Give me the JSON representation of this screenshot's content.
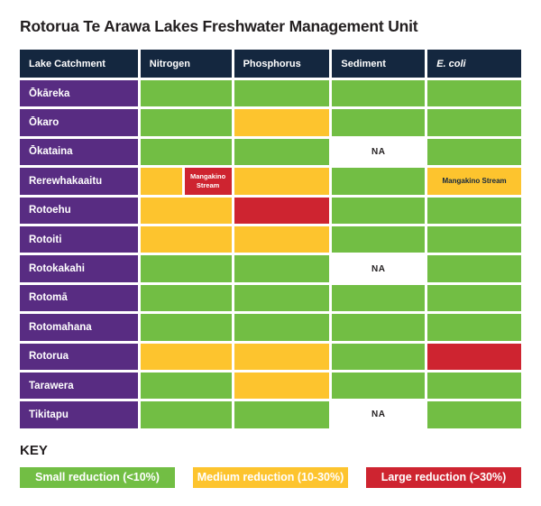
{
  "colors": {
    "green": "#72be44",
    "yellow": "#fdc42e",
    "red": "#ce2430",
    "purple": "#582c82",
    "navy": "#14273f",
    "na": "#ffffff",
    "text_dark": "#231f20"
  },
  "key_heading": "KEY",
  "chart_data": {
    "type": "table",
    "title": "Rotorua Te Arawa Lakes Freshwater Management Unit",
    "columns": [
      "Lake Catchment",
      "Nitrogen",
      "Phosphorus",
      "Sediment",
      "E. coli"
    ],
    "legend": [
      {
        "label": "Small reduction (<10%)",
        "level": "green",
        "color": "#72be44"
      },
      {
        "label": "Medium reduction (10-30%)",
        "level": "yellow",
        "color": "#fdc42e"
      },
      {
        "label": "Large reduction (>30%)",
        "level": "red",
        "color": "#ce2430"
      }
    ],
    "rows": [
      {
        "lake": "Ōkāreka",
        "cells": [
          {
            "level": "green"
          },
          {
            "level": "green"
          },
          {
            "level": "green"
          },
          {
            "level": "green"
          }
        ]
      },
      {
        "lake": "Ōkaro",
        "cells": [
          {
            "level": "green"
          },
          {
            "level": "yellow"
          },
          {
            "level": "green"
          },
          {
            "level": "green"
          }
        ]
      },
      {
        "lake": "Ōkataina",
        "cells": [
          {
            "level": "green"
          },
          {
            "level": "green"
          },
          {
            "level": "na",
            "label": "NA"
          },
          {
            "level": "green"
          }
        ]
      },
      {
        "lake": "Rerewhakaaitu",
        "cells": [
          {
            "split": {
              "left": "yellow",
              "right": "red",
              "right_label": "Mangakino Stream"
            }
          },
          {
            "level": "yellow"
          },
          {
            "level": "green"
          },
          {
            "level": "yellow",
            "label": "Mangakino Stream"
          }
        ]
      },
      {
        "lake": "Rotoehu",
        "cells": [
          {
            "level": "yellow"
          },
          {
            "level": "red"
          },
          {
            "level": "green"
          },
          {
            "level": "green"
          }
        ]
      },
      {
        "lake": "Rotoiti",
        "cells": [
          {
            "level": "yellow"
          },
          {
            "level": "yellow"
          },
          {
            "level": "green"
          },
          {
            "level": "green"
          }
        ]
      },
      {
        "lake": "Rotokakahi",
        "cells": [
          {
            "level": "green"
          },
          {
            "level": "green"
          },
          {
            "level": "na",
            "label": "NA"
          },
          {
            "level": "green"
          }
        ]
      },
      {
        "lake": "Rotomā",
        "cells": [
          {
            "level": "green"
          },
          {
            "level": "green"
          },
          {
            "level": "green"
          },
          {
            "level": "green"
          }
        ]
      },
      {
        "lake": "Rotomahana",
        "cells": [
          {
            "level": "green"
          },
          {
            "level": "green"
          },
          {
            "level": "green"
          },
          {
            "level": "green"
          }
        ]
      },
      {
        "lake": "Rotorua",
        "cells": [
          {
            "level": "yellow"
          },
          {
            "level": "yellow"
          },
          {
            "level": "green"
          },
          {
            "level": "red"
          }
        ]
      },
      {
        "lake": "Tarawera",
        "cells": [
          {
            "level": "green"
          },
          {
            "level": "yellow"
          },
          {
            "level": "green"
          },
          {
            "level": "green"
          }
        ]
      },
      {
        "lake": "Tikitapu",
        "cells": [
          {
            "level": "green"
          },
          {
            "level": "green"
          },
          {
            "level": "na",
            "label": "NA"
          },
          {
            "level": "green"
          }
        ]
      }
    ]
  }
}
